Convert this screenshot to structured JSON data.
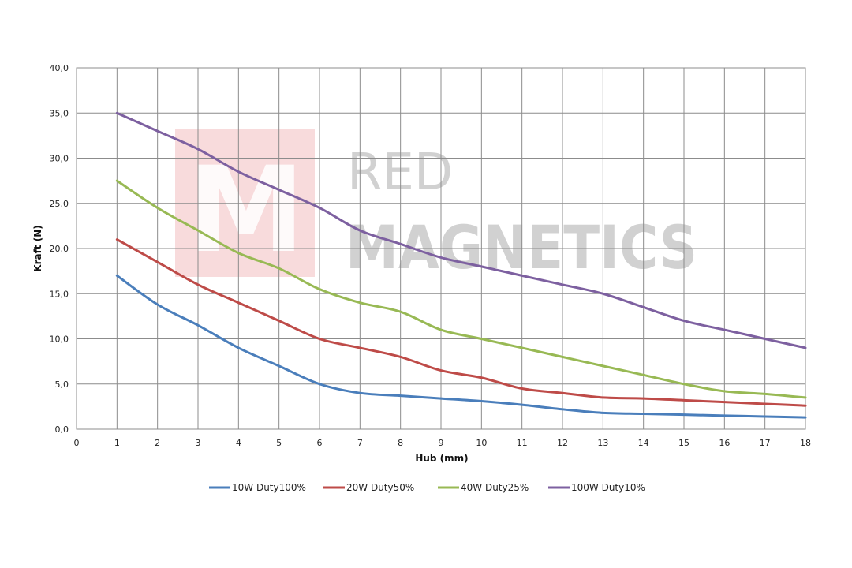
{
  "chart_data": {
    "type": "line",
    "xlabel": "Hub (mm)",
    "ylabel": "Kraft (N)",
    "xlim": [
      0,
      18
    ],
    "ylim": [
      0,
      40
    ],
    "x_ticks": [
      "0",
      "1",
      "2",
      "3",
      "4",
      "5",
      "6",
      "7",
      "8",
      "9",
      "10",
      "11",
      "12",
      "13",
      "14",
      "15",
      "16",
      "17",
      "18"
    ],
    "y_ticks": [
      "0,0",
      "5,0",
      "10,0",
      "15,0",
      "20,0",
      "25,0",
      "30,0",
      "35,0",
      "40,0"
    ],
    "grid": true,
    "legend_position": "bottom",
    "x": [
      1,
      2,
      3,
      4,
      5,
      6,
      7,
      8,
      9,
      10,
      11,
      12,
      13,
      14,
      15,
      16,
      17,
      18
    ],
    "series": [
      {
        "name": "10W Duty100%",
        "color": "#4a7ebb",
        "values": [
          17.0,
          13.8,
          11.5,
          9.0,
          7.0,
          5.0,
          4.0,
          3.7,
          3.4,
          3.1,
          2.7,
          2.2,
          1.8,
          1.7,
          1.6,
          1.5,
          1.4,
          1.3
        ]
      },
      {
        "name": "20W Duty50%",
        "color": "#be4b48",
        "values": [
          21.0,
          18.5,
          16.0,
          14.0,
          12.0,
          10.0,
          9.0,
          8.0,
          6.5,
          5.7,
          4.5,
          4.0,
          3.5,
          3.4,
          3.2,
          3.0,
          2.8,
          2.6
        ]
      },
      {
        "name": "40W Duty25%",
        "color": "#98b954",
        "values": [
          27.5,
          24.5,
          22.0,
          19.5,
          17.8,
          15.5,
          14.0,
          13.0,
          11.0,
          10.0,
          9.0,
          8.0,
          7.0,
          6.0,
          5.0,
          4.2,
          3.9,
          3.5
        ]
      },
      {
        "name": "100W Duty10%",
        "color": "#7d60a0",
        "values": [
          35.0,
          33.0,
          31.0,
          28.5,
          26.5,
          24.5,
          22.0,
          20.5,
          19.0,
          18.0,
          17.0,
          16.0,
          15.0,
          13.5,
          12.0,
          11.0,
          10.0,
          9.0
        ]
      }
    ]
  },
  "watermark": {
    "line1": "RED",
    "line2": "MAGNETICS",
    "logo_letter": "M"
  }
}
